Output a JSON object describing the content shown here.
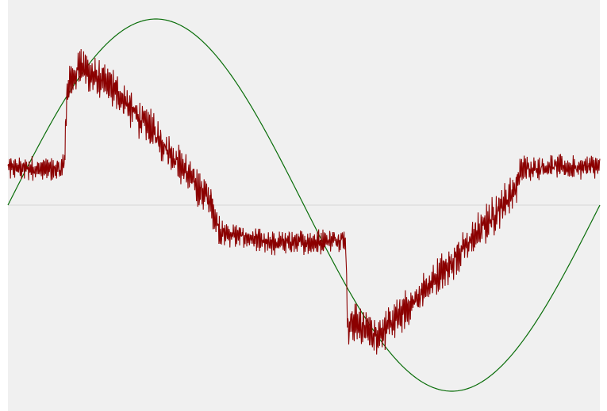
{
  "chart_data": {
    "type": "line",
    "title": "",
    "xlabel": "",
    "ylabel": "",
    "xlim": [
      0,
      1
    ],
    "ylim": [
      -1.1,
      1.1
    ],
    "grid": false,
    "legend": "none",
    "zero_line": {
      "y": 0,
      "color": "#d6d6d6"
    },
    "background_color": "#f0f0f0",
    "series": [
      {
        "color": "#0a6e0a",
        "function": "sine",
        "amplitude": 1.0,
        "cycles": 1,
        "phase": 0
      },
      {
        "color": "#8b0000",
        "x": [
          0.0,
          0.09,
          0.095,
          0.1,
          0.12,
          0.14,
          0.16,
          0.18,
          0.2,
          0.22,
          0.24,
          0.26,
          0.28,
          0.3,
          0.32,
          0.34,
          0.36,
          0.38,
          0.4,
          0.42,
          0.44,
          0.46,
          0.48,
          0.5,
          0.52,
          0.54,
          0.56,
          0.57,
          0.575,
          0.58,
          0.6,
          0.62,
          0.64,
          0.66,
          0.68,
          0.7,
          0.72,
          0.74,
          0.76,
          0.78,
          0.8,
          0.82,
          0.84,
          0.86,
          0.865,
          0.87,
          0.9,
          0.92,
          0.94,
          0.96,
          0.98,
          1.0
        ],
        "y": [
          0.2,
          0.19,
          0.21,
          0.62,
          0.75,
          0.7,
          0.66,
          0.62,
          0.55,
          0.47,
          0.41,
          0.34,
          0.26,
          0.18,
          0.1,
          0.03,
          -0.15,
          -0.16,
          -0.17,
          -0.19,
          -0.21,
          -0.2,
          -0.2,
          -0.2,
          -0.2,
          -0.19,
          -0.18,
          -0.18,
          -0.7,
          -0.62,
          -0.66,
          -0.7,
          -0.66,
          -0.6,
          -0.54,
          -0.47,
          -0.41,
          -0.34,
          -0.27,
          -0.2,
          -0.13,
          -0.06,
          0.02,
          0.1,
          0.17,
          0.2,
          0.2,
          0.21,
          0.2,
          0.2,
          0.21,
          0.2
        ],
        "noise_amplitude": 0.06
      }
    ]
  }
}
